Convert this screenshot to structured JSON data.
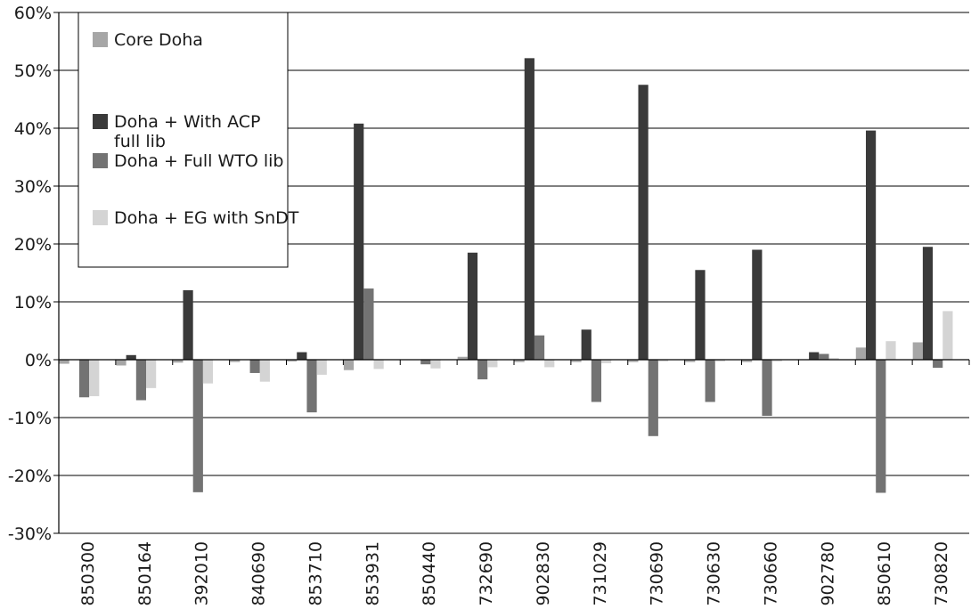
{
  "chart_data": {
    "type": "bar",
    "categories": [
      "850300",
      "850164",
      "392010",
      "840690",
      "853710",
      "853931",
      "850440",
      "732690",
      "902830",
      "731029",
      "730690",
      "730630",
      "730660",
      "902780",
      "850610",
      "730820"
    ],
    "series": [
      {
        "name": "Core Doha",
        "color": "#a6a6a6",
        "values": [
          -0.7,
          -1.0,
          -0.5,
          -0.4,
          -0.3,
          -1.8,
          0.0,
          0.5,
          -0.4,
          -0.4,
          -0.4,
          -0.4,
          -0.4,
          0.0,
          2.1,
          3.0
        ]
      },
      {
        "name": "Doha + With ACP full lib",
        "color": "#3a3a3a",
        "values": [
          0.0,
          0.8,
          12.0,
          0.0,
          1.3,
          40.8,
          0.0,
          18.5,
          52.1,
          5.2,
          47.5,
          15.5,
          19.0,
          1.3,
          39.6,
          19.5
        ]
      },
      {
        "name": "Doha + Full WTO lib",
        "color": "#737373",
        "values": [
          -6.5,
          -7.0,
          -22.9,
          -2.3,
          -9.1,
          12.3,
          -0.8,
          -3.4,
          4.2,
          -7.3,
          -13.2,
          -7.3,
          -9.7,
          1.0,
          -23.0,
          -1.4
        ]
      },
      {
        "name": "Doha + EG with SnDT",
        "color": "#d4d4d4",
        "values": [
          -6.3,
          -4.9,
          -4.1,
          -3.8,
          -2.6,
          -1.6,
          -1.5,
          -1.3,
          -1.3,
          -0.6,
          -0.3,
          -0.3,
          -0.3,
          0.3,
          3.2,
          8.4
        ]
      }
    ],
    "ylim": [
      -30,
      60
    ],
    "yticks": [
      -30,
      -20,
      -10,
      0,
      10,
      20,
      30,
      40,
      50,
      60
    ],
    "ytick_labels": [
      "-30%",
      "-20%",
      "-10%",
      "0%",
      "10%",
      "20%",
      "30%",
      "40%",
      "50%",
      "60%"
    ],
    "grid": true,
    "legend_position": "top-left",
    "title": "",
    "xlabel": "",
    "ylabel": ""
  }
}
